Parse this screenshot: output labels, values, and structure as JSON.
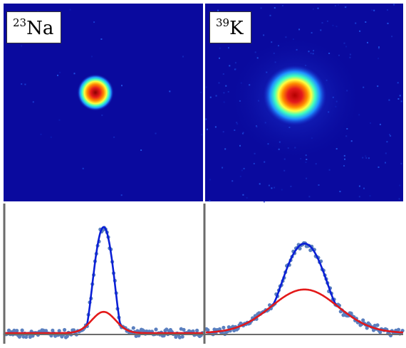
{
  "panels": [
    {
      "id": "na",
      "label_mass": "23",
      "label_element": "Na",
      "blob_radius_frac": 0.16,
      "noise_level": 0.06
    },
    {
      "id": "k",
      "label_mass": "39",
      "label_element": "K",
      "blob_radius_frac": 0.32,
      "noise_level": 0.28
    }
  ],
  "colors": {
    "image_background": "#0a0a9e",
    "fit_total": "#0a1fd6",
    "fit_thermal": "#e31a1a",
    "data_points": "#5a7fbf",
    "axis": "#6b6b6b"
  },
  "chart_data": [
    {
      "type": "scatter",
      "title": "",
      "xlabel": "",
      "ylabel": "",
      "xlim": [
        -1,
        1
      ],
      "ylim": [
        0,
        1.1
      ],
      "series": [
        {
          "kind": "points",
          "center": 0.0,
          "condensate_amp": 0.72,
          "condensate_width": 0.09,
          "thermal_amp": 0.18,
          "thermal_width": 0.12
        },
        {
          "kind": "total-fit",
          "center": 0.0,
          "amp": 0.9
        },
        {
          "kind": "thermal-fit",
          "center": 0.0,
          "amp": 0.18
        }
      ]
    },
    {
      "type": "scatter",
      "title": "",
      "xlabel": "",
      "ylabel": "",
      "xlim": [
        -1,
        1
      ],
      "ylim": [
        0,
        1.1
      ],
      "series": [
        {
          "kind": "points",
          "center": 0.0,
          "condensate_amp": 0.39,
          "condensate_width": 0.17,
          "thermal_amp": 0.37,
          "thermal_width": 0.34
        },
        {
          "kind": "total-fit",
          "center": 0.0,
          "amp": 0.76
        },
        {
          "kind": "thermal-fit",
          "center": 0.0,
          "amp": 0.37
        }
      ]
    }
  ]
}
